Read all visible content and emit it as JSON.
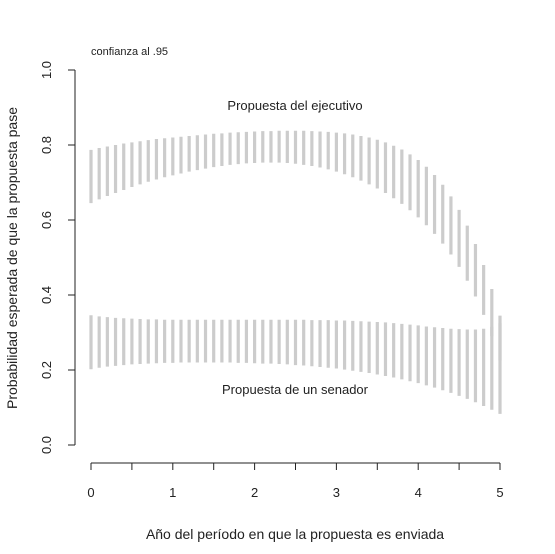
{
  "chart_data": {
    "type": "interval",
    "note": "confianza al .95",
    "xlabel": "Año del período en que la propuesta es enviada",
    "ylabel": "Probabilidad esperada de que la propuesta pase",
    "xlim": [
      0,
      5
    ],
    "ylim": [
      0,
      1
    ],
    "x_ticks": [
      "0",
      "1",
      "2",
      "3",
      "4",
      "5"
    ],
    "y_ticks": [
      "0.0",
      "0.2",
      "0.4",
      "0.6",
      "0.8",
      "1.0"
    ],
    "bar_color": "#cccccc",
    "x": [
      0,
      0.1,
      0.2,
      0.3,
      0.4,
      0.5,
      0.6,
      0.7,
      0.8,
      0.9,
      1.0,
      1.1,
      1.2,
      1.3,
      1.4,
      1.5,
      1.6,
      1.7,
      1.8,
      1.9,
      2.0,
      2.1,
      2.2,
      2.3,
      2.4,
      2.5,
      2.6,
      2.7,
      2.8,
      2.9,
      3.0,
      3.1,
      3.2,
      3.3,
      3.4,
      3.5,
      3.6,
      3.7,
      3.8,
      3.9,
      4.0,
      4.1,
      4.2,
      4.3,
      4.4,
      4.5,
      4.6,
      4.7,
      4.8,
      4.9,
      5.0
    ],
    "series": [
      {
        "name": "Propuesta del ejecutivo",
        "lower": [
          0.645,
          0.655,
          0.664,
          0.672,
          0.68,
          0.688,
          0.695,
          0.702,
          0.708,
          0.714,
          0.719,
          0.724,
          0.729,
          0.733,
          0.737,
          0.741,
          0.744,
          0.747,
          0.749,
          0.751,
          0.752,
          0.753,
          0.753,
          0.753,
          0.752,
          0.75,
          0.747,
          0.744,
          0.74,
          0.735,
          0.729,
          0.722,
          0.714,
          0.705,
          0.695,
          0.684,
          0.672,
          0.658,
          0.643,
          0.626,
          0.607,
          0.586,
          0.563,
          0.537,
          0.508,
          0.475,
          0.438,
          0.396,
          0.347,
          0.29,
          0.225
        ],
        "upper": [
          0.787,
          0.792,
          0.796,
          0.8,
          0.804,
          0.807,
          0.81,
          0.813,
          0.816,
          0.818,
          0.82,
          0.822,
          0.824,
          0.826,
          0.828,
          0.83,
          0.831,
          0.833,
          0.834,
          0.835,
          0.836,
          0.837,
          0.837,
          0.838,
          0.838,
          0.838,
          0.838,
          0.837,
          0.836,
          0.835,
          0.833,
          0.831,
          0.828,
          0.824,
          0.82,
          0.814,
          0.807,
          0.798,
          0.788,
          0.775,
          0.76,
          0.742,
          0.72,
          0.694,
          0.663,
          0.627,
          0.585,
          0.536,
          0.48,
          0.416,
          0.345
        ]
      },
      {
        "name": "Propuesta de un senador",
        "lower": [
          0.202,
          0.206,
          0.209,
          0.211,
          0.213,
          0.215,
          0.216,
          0.217,
          0.218,
          0.219,
          0.219,
          0.22,
          0.22,
          0.22,
          0.22,
          0.22,
          0.22,
          0.22,
          0.219,
          0.219,
          0.218,
          0.217,
          0.217,
          0.216,
          0.215,
          0.213,
          0.212,
          0.21,
          0.208,
          0.206,
          0.204,
          0.201,
          0.198,
          0.195,
          0.192,
          0.188,
          0.184,
          0.18,
          0.175,
          0.17,
          0.165,
          0.159,
          0.153,
          0.146,
          0.139,
          0.131,
          0.123,
          0.114,
          0.104,
          0.094,
          0.083
        ],
        "upper": [
          0.346,
          0.343,
          0.341,
          0.339,
          0.338,
          0.337,
          0.336,
          0.335,
          0.335,
          0.334,
          0.334,
          0.334,
          0.334,
          0.334,
          0.334,
          0.334,
          0.334,
          0.334,
          0.334,
          0.334,
          0.334,
          0.334,
          0.334,
          0.334,
          0.334,
          0.334,
          0.334,
          0.333,
          0.333,
          0.333,
          0.332,
          0.332,
          0.331,
          0.33,
          0.329,
          0.328,
          0.327,
          0.325,
          0.323,
          0.321,
          0.319,
          0.316,
          0.314,
          0.312,
          0.31,
          0.309,
          0.308,
          0.308,
          0.31,
          0.315,
          0.325
        ]
      }
    ]
  }
}
